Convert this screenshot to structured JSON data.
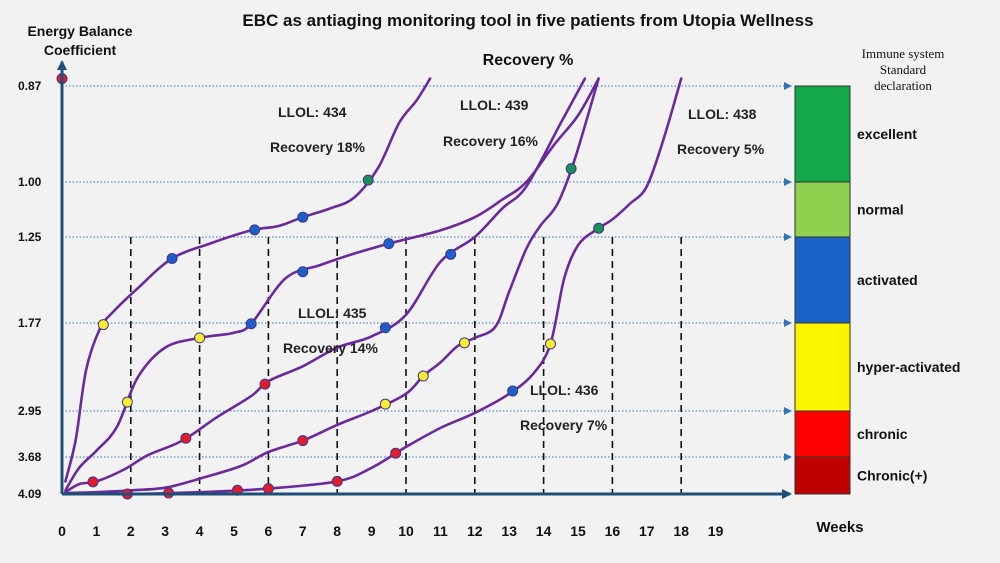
{
  "chart_data": {
    "type": "line",
    "title": "EBC as antiaging monitoring tool in five patients from Utopia Wellness",
    "subtitle": "Recovery %",
    "ylabel_line1": "Energy Balance",
    "ylabel_line2": "Coefficient",
    "xlabel": "Weeks",
    "x_ticks": [
      "0",
      "1",
      "2",
      "3",
      "4",
      "5",
      "6",
      "7",
      "8",
      "9",
      "10",
      "11",
      "12",
      "13",
      "14",
      "15",
      "16",
      "17",
      "18",
      "19"
    ],
    "xlim": [
      0,
      19
    ],
    "y_ticks": [
      {
        "label": "0.87",
        "value": 0.87
      },
      {
        "label": "1.00",
        "value": 1.0
      },
      {
        "label": "1.25",
        "value": 1.25
      },
      {
        "label": "1.77",
        "value": 1.77
      },
      {
        "label": "2.95",
        "value": 2.95
      },
      {
        "label": "3.68",
        "value": 3.68
      },
      {
        "label": "4.09",
        "value": 4.09
      }
    ],
    "y_axis_note": "EBC axis inverted (4.09 at origin, 0.87 at top), non-linear spacing",
    "grid": {
      "vertical_dashed_weeks": [
        2,
        4,
        6,
        8,
        10,
        12,
        14,
        16,
        18
      ],
      "horizontal_dotted_at_ticks": true
    },
    "line_color": "#6a2a9c",
    "series": [
      {
        "id": "p434",
        "annotation": [
          "LLOL: 434",
          "Recovery 18%"
        ],
        "path": [
          [
            0.1,
            3.95
          ],
          [
            0.4,
            3.4
          ],
          [
            0.7,
            2.4
          ],
          [
            1.1,
            1.85
          ],
          [
            1.5,
            1.7
          ],
          [
            2.2,
            1.56
          ],
          [
            3.2,
            1.38
          ],
          [
            4.3,
            1.29
          ],
          [
            5.5,
            1.22
          ],
          [
            6.3,
            1.2
          ],
          [
            7,
            1.16
          ],
          [
            7.8,
            1.12
          ],
          [
            8.5,
            1.07
          ],
          [
            9.2,
            0.98
          ],
          [
            9.8,
            0.92
          ],
          [
            10.3,
            0.89
          ],
          [
            10.7,
            0.86
          ]
        ],
        "markers": [
          [
            1.2,
            "yellow"
          ],
          [
            3.2,
            "blue"
          ],
          [
            5.6,
            "blue"
          ],
          [
            7.0,
            "blue"
          ],
          [
            8.9,
            "green"
          ]
        ]
      },
      {
        "id": "p439",
        "annotation": [
          "LLOL: 439",
          "Recovery 16%"
        ],
        "path": [
          [
            0.1,
            4.05
          ],
          [
            0.5,
            3.8
          ],
          [
            1,
            3.58
          ],
          [
            1.6,
            3.2
          ],
          [
            2.2,
            2.5
          ],
          [
            3,
            2.1
          ],
          [
            4,
            1.97
          ],
          [
            5,
            1.9
          ],
          [
            5.5,
            1.78
          ],
          [
            6.5,
            1.5
          ],
          [
            7.5,
            1.42
          ],
          [
            8.5,
            1.35
          ],
          [
            9.5,
            1.29
          ],
          [
            11,
            1.22
          ],
          [
            12,
            1.16
          ],
          [
            12.8,
            1.08
          ],
          [
            13.5,
            1
          ],
          [
            14.3,
            0.95
          ],
          [
            15,
            0.91
          ],
          [
            15.6,
            0.86
          ]
        ],
        "markers": [
          [
            1.9,
            "yellow"
          ],
          [
            4.0,
            "yellow"
          ],
          [
            5.5,
            "blue"
          ],
          [
            7.0,
            "blue"
          ],
          [
            9.5,
            "blue"
          ]
        ]
      },
      {
        "id": "p435",
        "annotation": [
          "LLOL: 435",
          "Recovery 14%"
        ],
        "path": [
          [
            0.1,
            4.07
          ],
          [
            0.5,
            3.98
          ],
          [
            1,
            3.95
          ],
          [
            1.8,
            3.82
          ],
          [
            2.5,
            3.65
          ],
          [
            3.5,
            3.42
          ],
          [
            4.5,
            3.05
          ],
          [
            5.5,
            2.75
          ],
          [
            6,
            2.55
          ],
          [
            7,
            2.35
          ],
          [
            8,
            2.1
          ],
          [
            9,
            1.95
          ],
          [
            10,
            1.72
          ],
          [
            11,
            1.4
          ],
          [
            12,
            1.25
          ],
          [
            12.8,
            1.12
          ],
          [
            13.5,
            1.02
          ],
          [
            14.5,
            0.92
          ],
          [
            15.2,
            0.86
          ]
        ],
        "markers": [
          [
            0.9,
            "red"
          ],
          [
            3.6,
            "red"
          ],
          [
            5.9,
            "red"
          ],
          [
            9.4,
            "blue"
          ],
          [
            11.3,
            "blue"
          ]
        ]
      },
      {
        "id": "p436",
        "annotation": [
          "LLOL: 436",
          "Recovery 7%"
        ],
        "path": [
          [
            0.1,
            4.08
          ],
          [
            1,
            4.07
          ],
          [
            2,
            4.05
          ],
          [
            3,
            4.02
          ],
          [
            4,
            3.92
          ],
          [
            5.2,
            3.78
          ],
          [
            6,
            3.6
          ],
          [
            7,
            3.42
          ],
          [
            8,
            3.17
          ],
          [
            9,
            2.95
          ],
          [
            10,
            2.72
          ],
          [
            10.5,
            2.48
          ],
          [
            11,
            2.3
          ],
          [
            11.5,
            2.08
          ],
          [
            12,
            1.97
          ],
          [
            12.6,
            1.82
          ],
          [
            13,
            1.58
          ],
          [
            13.5,
            1.32
          ],
          [
            13.9,
            1.2
          ],
          [
            14.4,
            1.1
          ],
          [
            14.9,
            0.97
          ],
          [
            15.6,
            0.86
          ]
        ],
        "markers": [
          [
            0.0,
            "red"
          ],
          [
            7.0,
            "red"
          ],
          [
            9.4,
            "yellow"
          ],
          [
            10.5,
            "yellow"
          ],
          [
            11.7,
            "yellow"
          ],
          [
            14.8,
            "green"
          ]
        ]
      },
      {
        "id": "p438",
        "annotation": [
          "LLOL: 438",
          "Recovery 5%"
        ],
        "path": [
          [
            0.1,
            4.09
          ],
          [
            2,
            4.09
          ],
          [
            4,
            4.07
          ],
          [
            6,
            4.03
          ],
          [
            8,
            3.95
          ],
          [
            9,
            3.8
          ],
          [
            10,
            3.52
          ],
          [
            11,
            3.22
          ],
          [
            12,
            2.98
          ],
          [
            13,
            2.72
          ],
          [
            13.7,
            2.45
          ],
          [
            14.2,
            2.05
          ],
          [
            14.6,
            1.5
          ],
          [
            15,
            1.3
          ],
          [
            15.5,
            1.22
          ],
          [
            16,
            1.17
          ],
          [
            16.5,
            1.1
          ],
          [
            17,
            1.02
          ],
          [
            17.5,
            0.94
          ],
          [
            18,
            0.86
          ]
        ],
        "markers": [
          [
            1.9,
            "red"
          ],
          [
            3.1,
            "red"
          ],
          [
            5.1,
            "red"
          ],
          [
            6.0,
            "red"
          ],
          [
            8.0,
            "red"
          ],
          [
            9.7,
            "red"
          ],
          [
            13.1,
            "blue"
          ],
          [
            14.2,
            "yellow"
          ],
          [
            15.6,
            "green"
          ]
        ]
      }
    ],
    "marker_colors": {
      "red": "#e41b2a",
      "yellow": "#fbec2e",
      "blue": "#1f5ec9",
      "green": "#1e8f5a"
    },
    "legend": {
      "title_line1": "Immune system",
      "title_line2": "Standard",
      "title_line3": "declaration",
      "placement": "right",
      "bands": [
        {
          "label": "excellent",
          "color": "#13a84a",
          "from": 0.87,
          "to": 1.0
        },
        {
          "label": "normal",
          "color": "#8fd14f",
          "from": 1.0,
          "to": 1.25
        },
        {
          "label": "activated",
          "color": "#1a63c6",
          "from": 1.25,
          "to": 1.77
        },
        {
          "label": "hyper-activated",
          "color": "#fbf500",
          "from": 1.77,
          "to": 2.95
        },
        {
          "label": "chronic",
          "color": "#ff0000",
          "from": 2.95,
          "to": 3.68
        },
        {
          "label": "Chronic(+)",
          "color": "#c00000",
          "from": 3.68,
          "to": 4.09
        }
      ]
    },
    "axis_color": "#1f4e79"
  }
}
